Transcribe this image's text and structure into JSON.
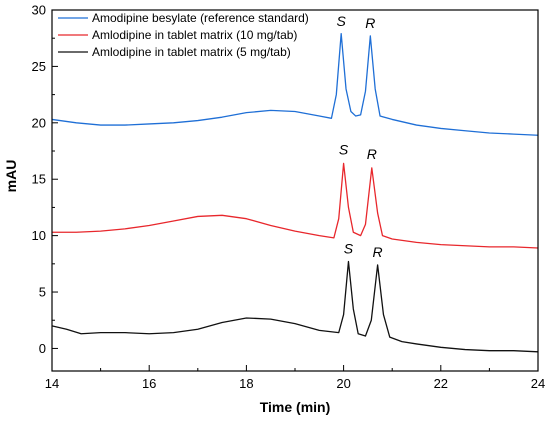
{
  "chart_data": {
    "type": "line",
    "xlabel": "Time (min)",
    "ylabel": "mAU",
    "xlim": [
      14,
      24
    ],
    "ylim": [
      -2,
      30
    ],
    "xticks": [
      14,
      16,
      18,
      20,
      22,
      24
    ],
    "yticks": [
      0,
      5,
      10,
      15,
      20,
      25,
      30
    ],
    "grid": false,
    "legend_position": "top-left",
    "series": [
      {
        "name": "Amodipine besylate (reference standard)",
        "color": "#1f6fd6",
        "points": [
          [
            14,
            20.3
          ],
          [
            14.5,
            20.0
          ],
          [
            15,
            19.8
          ],
          [
            15.5,
            19.8
          ],
          [
            16,
            19.9
          ],
          [
            16.5,
            20.0
          ],
          [
            17,
            20.2
          ],
          [
            17.5,
            20.5
          ],
          [
            18,
            20.9
          ],
          [
            18.5,
            21.1
          ],
          [
            19,
            21.0
          ],
          [
            19.5,
            20.6
          ],
          [
            19.75,
            20.4
          ],
          [
            19.85,
            22.5
          ],
          [
            19.95,
            27.9
          ],
          [
            20.05,
            23.0
          ],
          [
            20.15,
            21.0
          ],
          [
            20.25,
            20.6
          ],
          [
            20.35,
            20.7
          ],
          [
            20.45,
            22.8
          ],
          [
            20.55,
            27.7
          ],
          [
            20.65,
            23.0
          ],
          [
            20.75,
            20.6
          ],
          [
            21,
            20.3
          ],
          [
            21.5,
            19.8
          ],
          [
            22,
            19.5
          ],
          [
            22.5,
            19.3
          ],
          [
            23,
            19.1
          ],
          [
            23.5,
            19.0
          ],
          [
            24,
            18.9
          ]
        ]
      },
      {
        "name": "Amlodipine in tablet matrix (10 mg/tab)",
        "color": "#e8272c",
        "points": [
          [
            14,
            10.3
          ],
          [
            14.5,
            10.3
          ],
          [
            15,
            10.4
          ],
          [
            15.5,
            10.6
          ],
          [
            16,
            10.9
          ],
          [
            16.5,
            11.3
          ],
          [
            17,
            11.7
          ],
          [
            17.5,
            11.8
          ],
          [
            18,
            11.5
          ],
          [
            18.5,
            10.9
          ],
          [
            19,
            10.4
          ],
          [
            19.5,
            10.0
          ],
          [
            19.8,
            9.8
          ],
          [
            19.9,
            11.5
          ],
          [
            20.0,
            16.4
          ],
          [
            20.1,
            12.5
          ],
          [
            20.2,
            10.3
          ],
          [
            20.35,
            10.0
          ],
          [
            20.45,
            11.0
          ],
          [
            20.58,
            16.0
          ],
          [
            20.7,
            12.0
          ],
          [
            20.8,
            10.0
          ],
          [
            21,
            9.7
          ],
          [
            21.5,
            9.4
          ],
          [
            22,
            9.2
          ],
          [
            22.5,
            9.1
          ],
          [
            23,
            9.0
          ],
          [
            23.5,
            9.0
          ],
          [
            24,
            8.9
          ]
        ]
      },
      {
        "name": "Amlodipine in tablet matrix (5 mg/tab)",
        "color": "#111111",
        "points": [
          [
            14,
            2.0
          ],
          [
            14.3,
            1.7
          ],
          [
            14.6,
            1.3
          ],
          [
            15,
            1.4
          ],
          [
            15.5,
            1.4
          ],
          [
            16,
            1.3
          ],
          [
            16.5,
            1.4
          ],
          [
            17,
            1.7
          ],
          [
            17.5,
            2.3
          ],
          [
            18,
            2.7
          ],
          [
            18.5,
            2.6
          ],
          [
            19,
            2.2
          ],
          [
            19.5,
            1.6
          ],
          [
            19.9,
            1.4
          ],
          [
            20.0,
            3.0
          ],
          [
            20.1,
            7.7
          ],
          [
            20.2,
            3.5
          ],
          [
            20.3,
            1.3
          ],
          [
            20.45,
            1.1
          ],
          [
            20.57,
            2.5
          ],
          [
            20.7,
            7.4
          ],
          [
            20.82,
            3.0
          ],
          [
            20.95,
            1.0
          ],
          [
            21.2,
            0.6
          ],
          [
            21.5,
            0.4
          ],
          [
            22,
            0.1
          ],
          [
            22.5,
            -0.1
          ],
          [
            23,
            -0.2
          ],
          [
            23.5,
            -0.2
          ],
          [
            24,
            -0.3
          ]
        ]
      }
    ],
    "annotations": [
      {
        "text": "S",
        "x": 19.95,
        "y": 28.6
      },
      {
        "text": "R",
        "x": 20.55,
        "y": 28.4
      },
      {
        "text": "S",
        "x": 20.0,
        "y": 17.2
      },
      {
        "text": "R",
        "x": 20.58,
        "y": 16.8
      },
      {
        "text": "S",
        "x": 20.1,
        "y": 8.4
      },
      {
        "text": "R",
        "x": 20.7,
        "y": 8.1
      }
    ]
  }
}
